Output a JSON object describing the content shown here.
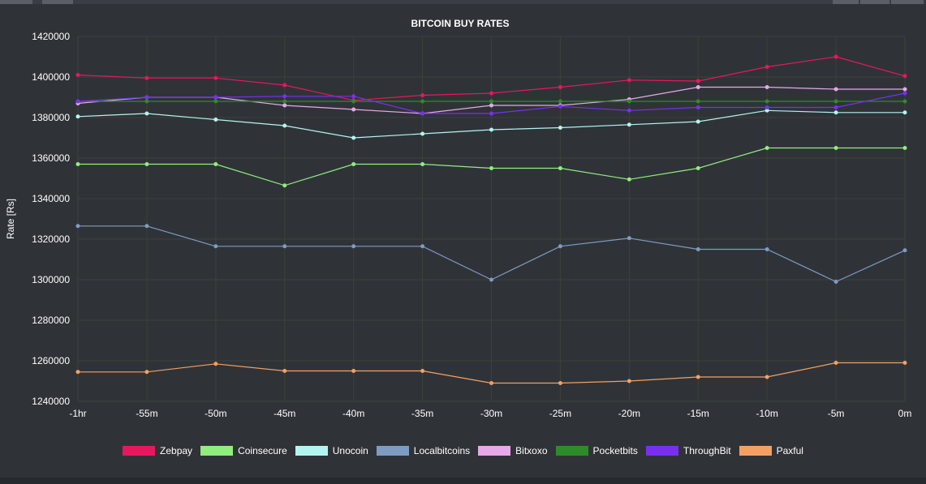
{
  "chart_data": {
    "type": "line",
    "title": "BITCOIN BUY RATES",
    "ylabel": "Rate [Rs]",
    "xlabel": "",
    "categories": [
      "-1hr",
      "-55m",
      "-50m",
      "-45m",
      "-40m",
      "-35m",
      "-30m",
      "-25m",
      "-20m",
      "-15m",
      "-10m",
      "-5m",
      "0m"
    ],
    "ylim": [
      1240000,
      1420000
    ],
    "yticks": [
      "1240000",
      "1260000",
      "1280000",
      "1300000",
      "1320000",
      "1340000",
      "1360000",
      "1380000",
      "1400000",
      "1420000"
    ],
    "grid": true,
    "legend_position": "bottom",
    "series": [
      {
        "name": "Zebpay",
        "color": "#e8175d",
        "values": [
          1401000,
          1399500,
          1399500,
          1396000,
          1388500,
          1391000,
          1392000,
          1395000,
          1398500,
          1398000,
          1405000,
          1410000,
          1400500
        ]
      },
      {
        "name": "Coinsecure",
        "color": "#90ee7e",
        "values": [
          1357000,
          1357000,
          1357000,
          1346500,
          1357000,
          1357000,
          1355000,
          1355000,
          1349500,
          1355000,
          1365000,
          1365000,
          1365000
        ]
      },
      {
        "name": "Unocoin",
        "color": "#b2f5f0",
        "values": [
          1380500,
          1382000,
          1379000,
          1376000,
          1370000,
          1372000,
          1374000,
          1375000,
          1376500,
          1378000,
          1383500,
          1382500,
          1382500
        ]
      },
      {
        "name": "Localbitcoins",
        "color": "#7d9cc4",
        "values": [
          1326500,
          1326500,
          1316500,
          1316500,
          1316500,
          1316500,
          1300000,
          1316500,
          1320500,
          1315000,
          1315000,
          1299000,
          1314500
        ]
      },
      {
        "name": "Bitxoxo",
        "color": "#e6a9ea",
        "values": [
          1387000,
          1390000,
          1390000,
          1386000,
          1384000,
          1382000,
          1386000,
          1386000,
          1389000,
          1395000,
          1395000,
          1394000,
          1394000
        ]
      },
      {
        "name": "Pocketbits",
        "color": "#2e8b2a",
        "values": [
          1388000,
          1388000,
          1388000,
          1388000,
          1388000,
          1388000,
          1388000,
          1388000,
          1388000,
          1388000,
          1388000,
          1388000,
          1388000
        ]
      },
      {
        "name": "ThroughBit",
        "color": "#7a2ff0",
        "values": [
          1388000,
          1390000,
          1390000,
          1390500,
          1390500,
          1382000,
          1382000,
          1385500,
          1383500,
          1385000,
          1385000,
          1385000,
          1392000
        ]
      },
      {
        "name": "Paxful",
        "color": "#f4a063",
        "values": [
          1254500,
          1254500,
          1258500,
          1255000,
          1255000,
          1255000,
          1249000,
          1249000,
          1250000,
          1252000,
          1252000,
          1259000,
          1259000
        ]
      }
    ]
  },
  "colors": {
    "background": "#2f3338",
    "grid": "#3d4137",
    "text": "#ffffff"
  }
}
